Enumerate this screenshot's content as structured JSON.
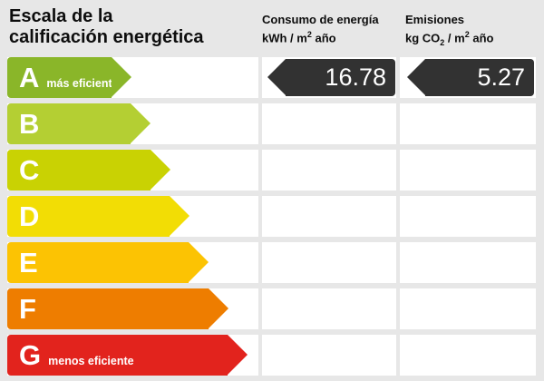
{
  "page": {
    "title_line1": "Escala de la",
    "title_line2": "calificación energética",
    "background_color": "#e7e7e7",
    "cell_color": "#ffffff",
    "text_color": "#0d0d0d"
  },
  "columns": {
    "consumo": {
      "line1": "Consumo de energía",
      "unit_pre": "kWh / m",
      "unit_sup": "2",
      "unit_post": " año"
    },
    "emisiones": {
      "line1": "Emisiones",
      "unit_pre": "kg CO",
      "unit_sub": "2",
      "unit_mid": " / m",
      "unit_sup": "2",
      "unit_post": " año"
    }
  },
  "scale": {
    "badge_color": "#323232",
    "ratings": [
      {
        "letter": "A",
        "color": "#8ab629",
        "note": "más eficiente",
        "consumo": "16.78",
        "emisiones": "5.27"
      },
      {
        "letter": "B",
        "color": "#b4cf33"
      },
      {
        "letter": "C",
        "color": "#c9d203"
      },
      {
        "letter": "D",
        "color": "#f2dd05"
      },
      {
        "letter": "E",
        "color": "#fcc303"
      },
      {
        "letter": "F",
        "color": "#ee7d00"
      },
      {
        "letter": "G",
        "color": "#e2231d",
        "note": "menos eficiente"
      }
    ]
  },
  "chart_data": {
    "type": "bar",
    "title": "Escala de la calificación energética",
    "categories": [
      "A",
      "B",
      "C",
      "D",
      "E",
      "F",
      "G"
    ],
    "category_colors": [
      "#8ab629",
      "#b4cf33",
      "#c9d203",
      "#f2dd05",
      "#fcc303",
      "#ee7d00",
      "#e2231d"
    ],
    "annotations": {
      "A": "más eficiente",
      "G": "menos eficiente"
    },
    "assigned_rating": "A",
    "series": [
      {
        "name": "Consumo de energía kWh/m² año",
        "rating": "A",
        "value": 16.78
      },
      {
        "name": "Emisiones kg CO₂/m² año",
        "rating": "A",
        "value": 5.27
      }
    ],
    "legend_position": "top",
    "grid": false
  }
}
